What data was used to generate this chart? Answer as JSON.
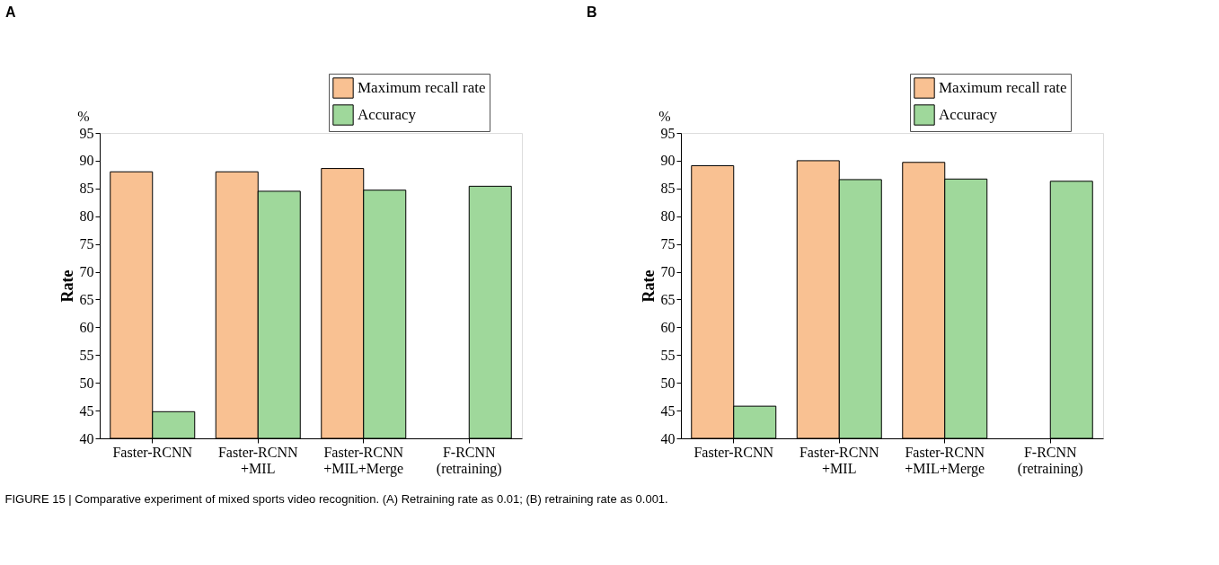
{
  "chart_data": [
    {
      "type": "bar",
      "title": "A",
      "ylabel": "Rate",
      "categories": [
        "Faster-RCNN",
        "Faster-RCNN\n+MIL",
        "Faster-RCNN\n+MIL+Merge",
        "F-RCNN\n(retraining)"
      ],
      "series": [
        {
          "name": "Maximum recall rate",
          "color": "#f9c192",
          "values": [
            88.0,
            88.0,
            88.6,
            null
          ]
        },
        {
          "name": "Accuracy",
          "color": "#9fd89b",
          "values": [
            44.8,
            84.5,
            84.7,
            85.4
          ]
        }
      ],
      "ylim": [
        40,
        95
      ],
      "yticks": [
        40,
        45,
        50,
        55,
        60,
        65,
        70,
        75,
        80,
        85,
        90,
        95
      ],
      "grid": false,
      "legend": "top right",
      "annotations": [
        "%"
      ]
    },
    {
      "type": "bar",
      "title": "B",
      "ylabel": "Rate",
      "categories": [
        "Faster-RCNN",
        "Faster-RCNN\n+MIL",
        "Faster-RCNN\n+MIL+Merge",
        "F-RCNN\n(retraining)"
      ],
      "series": [
        {
          "name": "Maximum recall rate",
          "color": "#f9c192",
          "values": [
            89.1,
            90.0,
            89.7,
            null
          ]
        },
        {
          "name": "Accuracy",
          "color": "#9fd89b",
          "values": [
            45.8,
            86.6,
            86.7,
            86.3
          ]
        }
      ],
      "ylim": [
        40,
        95
      ],
      "yticks": [
        40,
        45,
        50,
        55,
        60,
        65,
        70,
        75,
        80,
        85,
        90,
        95
      ],
      "grid": false,
      "legend": "top right",
      "annotations": [
        "%",
        "FIGURE 15 | Comparative experiment of mixed sports video recognition. (A) Retraining rate as 0.01; (B) retraining rate as 0.001."
      ]
    }
  ]
}
